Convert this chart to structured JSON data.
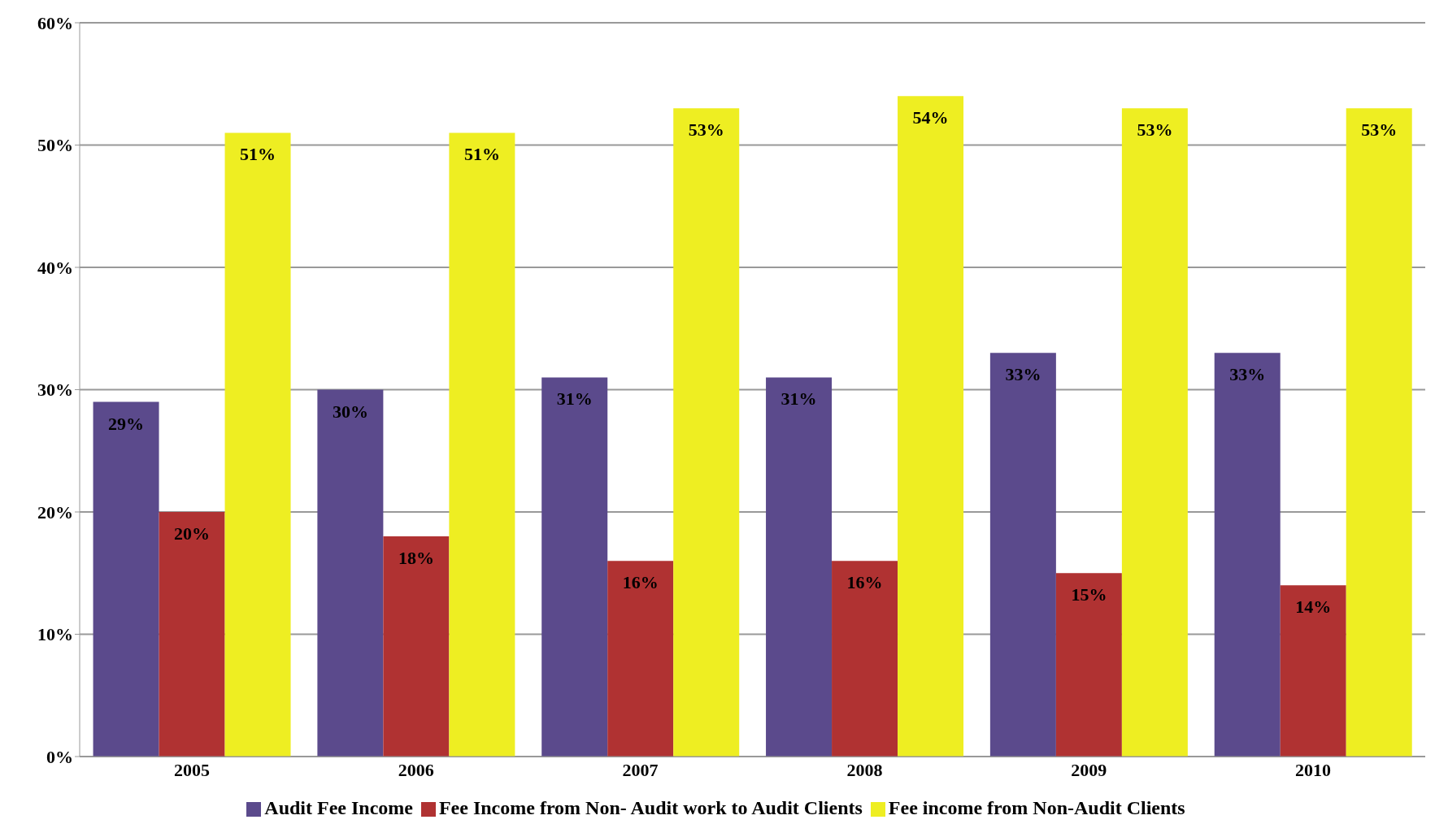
{
  "chart_data": {
    "type": "bar",
    "categories": [
      "2005",
      "2006",
      "2007",
      "2008",
      "2009",
      "2010"
    ],
    "series": [
      {
        "name": "Audit Fee Income",
        "color": "#5b4a8c",
        "values": [
          29,
          30,
          31,
          31,
          33,
          33
        ],
        "value_labels": [
          "29%",
          "30%",
          "31%",
          "31%",
          "33%",
          "33%"
        ]
      },
      {
        "name": "Fee Income from Non- Audit work to Audit Clients",
        "color": "#b03232",
        "values": [
          20,
          18,
          16,
          16,
          15,
          14
        ],
        "value_labels": [
          "20%",
          "18%",
          "16%",
          "16%",
          "15%",
          "14%"
        ]
      },
      {
        "name": "Fee income from Non-Audit Clients",
        "color": "#eeee22",
        "values": [
          51,
          51,
          53,
          54,
          53,
          53
        ],
        "value_labels": [
          "51%",
          "51%",
          "53%",
          "54%",
          "53%",
          "53%"
        ]
      }
    ],
    "ylim": [
      0,
      60
    ],
    "yticks": [
      {
        "value": 0,
        "label": "0%"
      },
      {
        "value": 10,
        "label": "10%"
      },
      {
        "value": 20,
        "label": "20%"
      },
      {
        "value": 30,
        "label": "30%"
      },
      {
        "value": 40,
        "label": "40%"
      },
      {
        "value": 50,
        "label": "50%"
      },
      {
        "value": 60,
        "label": "60%"
      }
    ],
    "grid": "y",
    "legend": "bottom"
  }
}
